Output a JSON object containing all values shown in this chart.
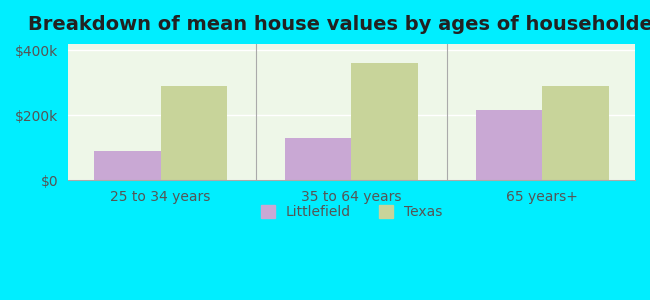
{
  "title": "Breakdown of mean house values by ages of householders",
  "categories": [
    "25 to 34 years",
    "35 to 64 years",
    "65 years+"
  ],
  "littlefield_values": [
    90000,
    130000,
    215000
  ],
  "texas_values": [
    290000,
    360000,
    290000
  ],
  "littlefield_color": "#c9a8d4",
  "texas_color": "#c8d49a",
  "background_outer": "#00eeff",
  "background_inner": "#eef7e8",
  "ylim": [
    0,
    420000
  ],
  "yticks": [
    0,
    200000,
    400000
  ],
  "ytick_labels": [
    "$0",
    "$200k",
    "$400k"
  ],
  "legend_labels": [
    "Littlefield",
    "Texas"
  ],
  "bar_width": 0.35,
  "title_fontsize": 14,
  "tick_fontsize": 10,
  "legend_fontsize": 10,
  "text_color": "#555555"
}
